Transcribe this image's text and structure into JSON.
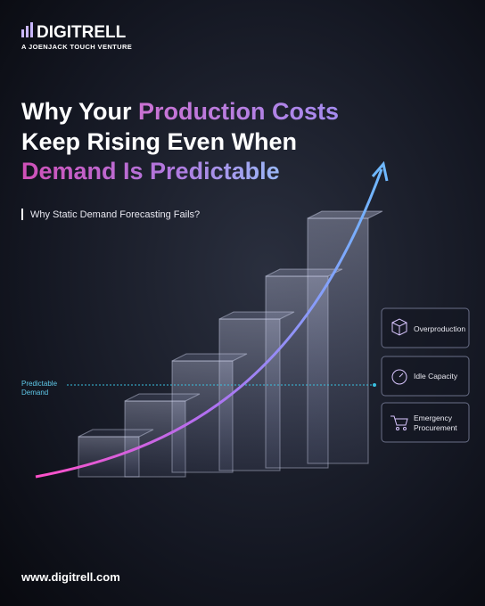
{
  "brand": {
    "name": "DIGITRELL",
    "tagline": "A JOENJACK TOUCH VENTURE"
  },
  "headline": {
    "line1": [
      "Why Your ",
      "Production Costs"
    ],
    "line2": "Keep Rising Even When",
    "line3": "Demand Is Predictable"
  },
  "subtitle": "Why Static Demand Forecasting Fails?",
  "baseline_label": [
    "Predictable",
    "Demand"
  ],
  "issues": [
    [
      "Overproduction"
    ],
    [
      "Idle Capacity"
    ],
    [
      "Emergency",
      "Procurement"
    ]
  ],
  "footer": "www.digitrell.com"
}
